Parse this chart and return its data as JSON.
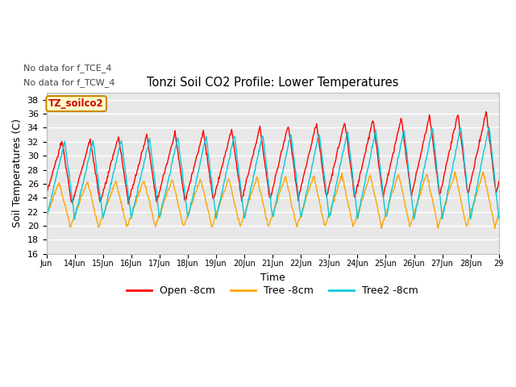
{
  "title": "Tonzi Soil CO2 Profile: Lower Temperatures",
  "xlabel": "Time",
  "ylabel": "Soil Temperatures (C)",
  "ylim": [
    16,
    39
  ],
  "yticks": [
    16,
    18,
    20,
    22,
    24,
    26,
    28,
    30,
    32,
    34,
    36,
    38
  ],
  "note1": "No data for f_TCE_4",
  "note2": "No data for f_TCW_4",
  "box_label": "TZ_soilco2",
  "legend": [
    "Open -8cm",
    "Tree -8cm",
    "Tree2 -8cm"
  ],
  "colors": {
    "open": "#ff0000",
    "tree": "#ffa500",
    "tree2": "#00ccdd"
  },
  "fig_bg": "#ffffff",
  "ax_bg": "#e8e8e8",
  "grid_color": "#ffffff"
}
